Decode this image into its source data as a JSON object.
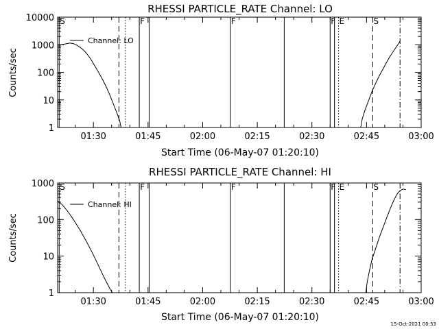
{
  "footer_timestamp": "15-Oct-2021 00:53",
  "chart_data": [
    {
      "type": "line",
      "title": "RHESSI PARTICLE_RATE Channel: LO",
      "xlabel": "Start Time (06-May-07 01:20:10)",
      "ylabel": "Counts/sec",
      "yscale": "log",
      "ylim": [
        1,
        10000
      ],
      "xlim_minutes": [
        20.17,
        120.0
      ],
      "x_tick_labels": [
        "01:30",
        "01:45",
        "02:00",
        "02:15",
        "02:30",
        "02:45",
        "03:00"
      ],
      "x_tick_minutes": [
        30,
        45,
        60,
        75,
        90,
        105,
        120
      ],
      "y_tick_labels": [
        "1",
        "10",
        "100",
        "1000",
        "10000"
      ],
      "y_tick_values": [
        1,
        10,
        100,
        1000,
        10000
      ],
      "legend": {
        "label": "Channel: LO",
        "position": "top-left"
      },
      "markers": [
        {
          "minute": 20.6,
          "style": "solid",
          "label": "S"
        },
        {
          "minute": 37.0,
          "style": "dashed",
          "label": ""
        },
        {
          "minute": 38.8,
          "style": "dotted",
          "label": ""
        },
        {
          "minute": 42.6,
          "style": "solid",
          "label": "F"
        },
        {
          "minute": 45.3,
          "style": "solid",
          "label": ""
        },
        {
          "minute": 67.6,
          "style": "solid",
          "label": "F"
        },
        {
          "minute": 82.4,
          "style": "solid",
          "label": ""
        },
        {
          "minute": 95.0,
          "style": "solid",
          "label": "F"
        },
        {
          "minute": 96.2,
          "style": "solid",
          "label": ""
        },
        {
          "minute": 97.3,
          "style": "dotted",
          "label": "E"
        },
        {
          "minute": 106.7,
          "style": "dashed",
          "label": "S"
        },
        {
          "minute": 114.2,
          "style": "dashdot",
          "label": ""
        }
      ],
      "series": [
        {
          "segments": [
            [
              [
                20.2,
                1000
              ],
              [
                21.5,
                1020
              ],
              [
                22.5,
                1080
              ],
              [
                23.5,
                1150
              ],
              [
                24.5,
                1100
              ],
              [
                25.5,
                950
              ],
              [
                26.5,
                780
              ],
              [
                27.5,
                600
              ],
              [
                28.5,
                420
              ],
              [
                29.5,
                270
              ],
              [
                30.5,
                160
              ],
              [
                31.5,
                95
              ],
              [
                32.5,
                55
              ],
              [
                33.5,
                30
              ],
              [
                34.5,
                15
              ],
              [
                35.5,
                7
              ],
              [
                36.5,
                3.2
              ],
              [
                37.2,
                1.8
              ],
              [
                37.6,
                1.0
              ]
            ],
            [
              [
                103.4,
                1.0
              ],
              [
                103.8,
                2.0
              ],
              [
                104.5,
                4
              ],
              [
                105.5,
                9
              ],
              [
                106.5,
                20
              ],
              [
                107.5,
                40
              ],
              [
                108.5,
                75
              ],
              [
                109.5,
                130
              ],
              [
                110.5,
                230
              ],
              [
                111.5,
                390
              ],
              [
                112.5,
                620
              ],
              [
                113.5,
                950
              ],
              [
                114.2,
                1350
              ]
            ]
          ]
        }
      ]
    },
    {
      "type": "line",
      "title": "RHESSI PARTICLE_RATE Channel: HI",
      "xlabel": "Start Time (06-May-07 01:20:10)",
      "ylabel": "Counts/sec",
      "yscale": "log",
      "ylim": [
        1,
        1000
      ],
      "xlim_minutes": [
        20.17,
        120.0
      ],
      "x_tick_labels": [
        "01:30",
        "01:45",
        "02:00",
        "02:15",
        "02:30",
        "02:45",
        "03:00"
      ],
      "x_tick_minutes": [
        30,
        45,
        60,
        75,
        90,
        105,
        120
      ],
      "y_tick_labels": [
        "1",
        "10",
        "100",
        "1000"
      ],
      "y_tick_values": [
        1,
        10,
        100,
        1000
      ],
      "legend": {
        "label": "Channel: HI",
        "position": "top-left"
      },
      "markers": [
        {
          "minute": 20.6,
          "style": "solid",
          "label": "S"
        },
        {
          "minute": 37.0,
          "style": "dashed",
          "label": ""
        },
        {
          "minute": 38.8,
          "style": "dotted",
          "label": ""
        },
        {
          "minute": 42.6,
          "style": "solid",
          "label": "F"
        },
        {
          "minute": 45.3,
          "style": "solid",
          "label": ""
        },
        {
          "minute": 67.6,
          "style": "solid",
          "label": "F"
        },
        {
          "minute": 82.4,
          "style": "solid",
          "label": ""
        },
        {
          "minute": 95.0,
          "style": "solid",
          "label": "F"
        },
        {
          "minute": 96.2,
          "style": "solid",
          "label": ""
        },
        {
          "minute": 97.3,
          "style": "dotted",
          "label": "E"
        },
        {
          "minute": 106.7,
          "style": "dashed",
          "label": "S"
        },
        {
          "minute": 114.2,
          "style": "dashdot",
          "label": ""
        }
      ],
      "series": [
        {
          "segments": [
            [
              [
                20.2,
                320
              ],
              [
                21.5,
                250
              ],
              [
                22.5,
                190
              ],
              [
                23.5,
                140
              ],
              [
                24.5,
                100
              ],
              [
                25.5,
                70
              ],
              [
                26.5,
                48
              ],
              [
                27.5,
                32
              ],
              [
                28.5,
                21
              ],
              [
                29.5,
                13.5
              ],
              [
                30.5,
                8.5
              ],
              [
                31.5,
                5.2
              ],
              [
                32.5,
                3.2
              ],
              [
                33.5,
                2.0
              ],
              [
                34.5,
                1.3
              ],
              [
                35.2,
                1.0
              ]
            ],
            [
              [
                104.8,
                1.0
              ],
              [
                105.2,
                2.0
              ],
              [
                105.8,
                4
              ],
              [
                106.5,
                8
              ],
              [
                107.5,
                16
              ],
              [
                108.5,
                32
              ],
              [
                109.5,
                60
              ],
              [
                110.5,
                110
              ],
              [
                111.5,
                200
              ],
              [
                112.5,
                340
              ],
              [
                113.5,
                520
              ],
              [
                114.2,
                620
              ],
              [
                115.0,
                680
              ],
              [
                115.8,
                660
              ]
            ]
          ]
        }
      ]
    }
  ]
}
